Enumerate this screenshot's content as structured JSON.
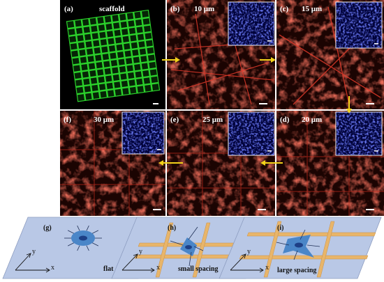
{
  "panels": {
    "a": {
      "label": "(a)",
      "title": "scaffold"
    },
    "b": {
      "label": "(b)",
      "title": "10 μm"
    },
    "c": {
      "label": "(c)",
      "title": "15 μm"
    },
    "d": {
      "label": "(d)",
      "title": "20 μm"
    },
    "e": {
      "label": "(e)",
      "title": "25 μm"
    },
    "f": {
      "label": "(f)",
      "title": "30 μm"
    }
  },
  "schematics": {
    "g": {
      "label": "(g)",
      "caption": "flat",
      "x_axis": "x",
      "y_axis": "y"
    },
    "h": {
      "label": "(h)",
      "caption": "small spacing",
      "x_axis": "x",
      "y_axis": "y"
    },
    "i": {
      "label": "(i)",
      "caption": "large spacing",
      "x_axis": "x",
      "y_axis": "y"
    }
  },
  "colors": {
    "scaffold_grid": "#2bd12b",
    "actin": "#d42a1a",
    "nucleus": "#2233dd",
    "arrow": "#f2d21a",
    "substrate": "#b9c8e6",
    "fiber": "#e8b56a",
    "cell": "#4a86c8"
  }
}
